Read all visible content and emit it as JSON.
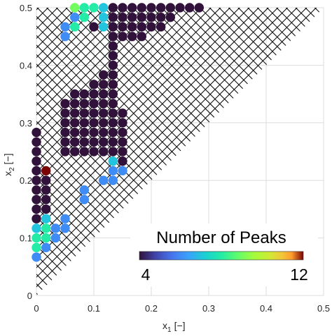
{
  "chart_data": {
    "type": "scatter",
    "xlabel": "x",
    "xlabel_sub": "1",
    "xlabel_unit": "[−]",
    "ylabel": "x",
    "ylabel_sub": "2",
    "ylabel_unit": "[−]",
    "xlim": [
      0,
      0.5
    ],
    "ylim": [
      0,
      0.5
    ],
    "x_ticks": [
      0,
      0.1,
      0.2,
      0.3,
      0.4,
      0.5
    ],
    "y_ticks": [
      0,
      0.1,
      0.2,
      0.3,
      0.4,
      0.5
    ],
    "x_tick_labels": [
      "0",
      "0.1",
      "0.2",
      "0.3",
      "0.4",
      "0.5"
    ],
    "y_tick_labels": [
      "0",
      "0.1",
      "0.2",
      "0.3",
      "0.4",
      "0.5"
    ],
    "grid": true,
    "grid_spacing": 0.01667,
    "infeasible_region": "crossed",
    "colorbar": {
      "title": "Number of Peaks",
      "min": 4,
      "max": 12,
      "min_label": "4",
      "max_label": "12",
      "colormap": "turbo",
      "placement": "bottom-right"
    },
    "points": [
      {
        "x": 0.0667,
        "y": 0.5,
        "peaks": 9
      },
      {
        "x": 0.0833,
        "y": 0.5,
        "peaks": 8
      },
      {
        "x": 0.1,
        "y": 0.5,
        "peaks": 8
      },
      {
        "x": 0.1167,
        "y": 0.5,
        "peaks": 7
      },
      {
        "x": 0.1333,
        "y": 0.5,
        "peaks": 4
      },
      {
        "x": 0.15,
        "y": 0.5,
        "peaks": 4
      },
      {
        "x": 0.1667,
        "y": 0.5,
        "peaks": 4
      },
      {
        "x": 0.1833,
        "y": 0.5,
        "peaks": 4
      },
      {
        "x": 0.2,
        "y": 0.5,
        "peaks": 4
      },
      {
        "x": 0.2167,
        "y": 0.5,
        "peaks": 4
      },
      {
        "x": 0.2333,
        "y": 0.5,
        "peaks": 4
      },
      {
        "x": 0.25,
        "y": 0.5,
        "peaks": 4
      },
      {
        "x": 0.2667,
        "y": 0.5,
        "peaks": 4
      },
      {
        "x": 0.2833,
        "y": 0.5,
        "peaks": 4
      },
      {
        "x": 0.0667,
        "y": 0.4833,
        "peaks": 6
      },
      {
        "x": 0.0833,
        "y": 0.4833,
        "peaks": 8
      },
      {
        "x": 0.1167,
        "y": 0.4833,
        "peaks": 7
      },
      {
        "x": 0.1333,
        "y": 0.4833,
        "peaks": 4
      },
      {
        "x": 0.15,
        "y": 0.4833,
        "peaks": 4
      },
      {
        "x": 0.1667,
        "y": 0.4833,
        "peaks": 4
      },
      {
        "x": 0.1833,
        "y": 0.4833,
        "peaks": 4
      },
      {
        "x": 0.2,
        "y": 0.4833,
        "peaks": 4
      },
      {
        "x": 0.2167,
        "y": 0.4833,
        "peaks": 4
      },
      {
        "x": 0.2333,
        "y": 0.4833,
        "peaks": 4
      },
      {
        "x": 0.05,
        "y": 0.4667,
        "peaks": 6
      },
      {
        "x": 0.0667,
        "y": 0.4667,
        "peaks": 8
      },
      {
        "x": 0.1,
        "y": 0.4667,
        "peaks": 4
      },
      {
        "x": 0.1167,
        "y": 0.4667,
        "peaks": 7
      },
      {
        "x": 0.1333,
        "y": 0.4667,
        "peaks": 4
      },
      {
        "x": 0.15,
        "y": 0.4667,
        "peaks": 4
      },
      {
        "x": 0.1667,
        "y": 0.4667,
        "peaks": 4
      },
      {
        "x": 0.1833,
        "y": 0.4667,
        "peaks": 4
      },
      {
        "x": 0.2,
        "y": 0.4667,
        "peaks": 4
      },
      {
        "x": 0.2167,
        "y": 0.4667,
        "peaks": 4
      },
      {
        "x": 0.05,
        "y": 0.45,
        "peaks": 6
      },
      {
        "x": 0.1333,
        "y": 0.45,
        "peaks": 4
      },
      {
        "x": 0.15,
        "y": 0.45,
        "peaks": 4
      },
      {
        "x": 0.1667,
        "y": 0.45,
        "peaks": 4
      },
      {
        "x": 0.1833,
        "y": 0.45,
        "peaks": 4
      },
      {
        "x": 0.1333,
        "y": 0.4333,
        "peaks": 4
      },
      {
        "x": 0.1333,
        "y": 0.4167,
        "peaks": 4
      },
      {
        "x": 0.1333,
        "y": 0.4,
        "peaks": 4
      },
      {
        "x": 0.1167,
        "y": 0.3833,
        "peaks": 4
      },
      {
        "x": 0.1333,
        "y": 0.3833,
        "peaks": 4
      },
      {
        "x": 0.1,
        "y": 0.3667,
        "peaks": 4
      },
      {
        "x": 0.1167,
        "y": 0.3667,
        "peaks": 4
      },
      {
        "x": 0.1333,
        "y": 0.3667,
        "peaks": 4
      },
      {
        "x": 0.0667,
        "y": 0.35,
        "peaks": 4
      },
      {
        "x": 0.0833,
        "y": 0.35,
        "peaks": 4
      },
      {
        "x": 0.1,
        "y": 0.35,
        "peaks": 4
      },
      {
        "x": 0.1167,
        "y": 0.35,
        "peaks": 4
      },
      {
        "x": 0.1333,
        "y": 0.35,
        "peaks": 4
      },
      {
        "x": 0.05,
        "y": 0.3333,
        "peaks": 4
      },
      {
        "x": 0.0667,
        "y": 0.3333,
        "peaks": 4
      },
      {
        "x": 0.0833,
        "y": 0.3333,
        "peaks": 4
      },
      {
        "x": 0.1,
        "y": 0.3333,
        "peaks": 4
      },
      {
        "x": 0.1167,
        "y": 0.3333,
        "peaks": 4
      },
      {
        "x": 0.1333,
        "y": 0.3333,
        "peaks": 4
      },
      {
        "x": 0.05,
        "y": 0.3167,
        "peaks": 4
      },
      {
        "x": 0.0667,
        "y": 0.3167,
        "peaks": 4
      },
      {
        "x": 0.0833,
        "y": 0.3167,
        "peaks": 4
      },
      {
        "x": 0.1,
        "y": 0.3167,
        "peaks": 4
      },
      {
        "x": 0.1167,
        "y": 0.3167,
        "peaks": 4
      },
      {
        "x": 0.1333,
        "y": 0.3167,
        "peaks": 4
      },
      {
        "x": 0.15,
        "y": 0.3167,
        "peaks": 4
      },
      {
        "x": 0.05,
        "y": 0.3,
        "peaks": 4
      },
      {
        "x": 0.0667,
        "y": 0.3,
        "peaks": 4
      },
      {
        "x": 0.0833,
        "y": 0.3,
        "peaks": 4
      },
      {
        "x": 0.1,
        "y": 0.3,
        "peaks": 4
      },
      {
        "x": 0.1167,
        "y": 0.3,
        "peaks": 4
      },
      {
        "x": 0.1333,
        "y": 0.3,
        "peaks": 4
      },
      {
        "x": 0.15,
        "y": 0.3,
        "peaks": 4
      },
      {
        "x": 0.05,
        "y": 0.2833,
        "peaks": 4
      },
      {
        "x": 0.0667,
        "y": 0.2833,
        "peaks": 4
      },
      {
        "x": 0.0833,
        "y": 0.2833,
        "peaks": 4
      },
      {
        "x": 0.1,
        "y": 0.2833,
        "peaks": 4
      },
      {
        "x": 0.1167,
        "y": 0.2833,
        "peaks": 4
      },
      {
        "x": 0.1333,
        "y": 0.2833,
        "peaks": 4
      },
      {
        "x": 0.15,
        "y": 0.2833,
        "peaks": 4
      },
      {
        "x": 0.05,
        "y": 0.2667,
        "peaks": 4
      },
      {
        "x": 0.0667,
        "y": 0.2667,
        "peaks": 4
      },
      {
        "x": 0.0833,
        "y": 0.2667,
        "peaks": 4
      },
      {
        "x": 0.1,
        "y": 0.2667,
        "peaks": 4
      },
      {
        "x": 0.1167,
        "y": 0.2667,
        "peaks": 4
      },
      {
        "x": 0.1333,
        "y": 0.2667,
        "peaks": 4
      },
      {
        "x": 0.15,
        "y": 0.2667,
        "peaks": 4
      },
      {
        "x": 0.05,
        "y": 0.25,
        "peaks": 4
      },
      {
        "x": 0.0667,
        "y": 0.25,
        "peaks": 4
      },
      {
        "x": 0.0833,
        "y": 0.25,
        "peaks": 4
      },
      {
        "x": 0.1,
        "y": 0.25,
        "peaks": 4
      },
      {
        "x": 0.1167,
        "y": 0.25,
        "peaks": 4
      },
      {
        "x": 0.1333,
        "y": 0.25,
        "peaks": 4
      },
      {
        "x": 0.15,
        "y": 0.25,
        "peaks": 4
      },
      {
        "x": 0.1333,
        "y": 0.2333,
        "peaks": 7
      },
      {
        "x": 0.15,
        "y": 0.2333,
        "peaks": 4
      },
      {
        "x": 0.1333,
        "y": 0.2167,
        "peaks": 6
      },
      {
        "x": 0.15,
        "y": 0.2167,
        "peaks": 6
      },
      {
        "x": 0.0833,
        "y": 0.1833,
        "peaks": 6
      },
      {
        "x": 0.0833,
        "y": 0.1667,
        "peaks": 6
      },
      {
        "x": 0.1167,
        "y": 0.2,
        "peaks": 6
      },
      {
        "x": 0.1333,
        "y": 0.2,
        "peaks": 6
      },
      {
        "x": 0,
        "y": 0.2833,
        "peaks": 4
      },
      {
        "x": 0,
        "y": 0.2667,
        "peaks": 4
      },
      {
        "x": 0,
        "y": 0.25,
        "peaks": 4
      },
      {
        "x": 0,
        "y": 0.2333,
        "peaks": 4
      },
      {
        "x": 0,
        "y": 0.2167,
        "peaks": 4
      },
      {
        "x": 0.0167,
        "y": 0.2167,
        "peaks": 12
      },
      {
        "x": 0,
        "y": 0.2,
        "peaks": 4
      },
      {
        "x": 0.0167,
        "y": 0.2,
        "peaks": 4
      },
      {
        "x": 0,
        "y": 0.1833,
        "peaks": 4
      },
      {
        "x": 0.0167,
        "y": 0.1833,
        "peaks": 4
      },
      {
        "x": 0,
        "y": 0.1667,
        "peaks": 4
      },
      {
        "x": 0.0167,
        "y": 0.1667,
        "peaks": 4
      },
      {
        "x": 0,
        "y": 0.15,
        "peaks": 4
      },
      {
        "x": 0.0167,
        "y": 0.15,
        "peaks": 4
      },
      {
        "x": 0,
        "y": 0.1333,
        "peaks": 4
      },
      {
        "x": 0.0167,
        "y": 0.1333,
        "peaks": 7
      },
      {
        "x": 0.05,
        "y": 0.1333,
        "peaks": 6
      },
      {
        "x": 0,
        "y": 0.1167,
        "peaks": 7
      },
      {
        "x": 0.0167,
        "y": 0.1167,
        "peaks": 8
      },
      {
        "x": 0.0333,
        "y": 0.1167,
        "peaks": 6
      },
      {
        "x": 0.05,
        "y": 0.1167,
        "peaks": 6
      },
      {
        "x": 0,
        "y": 0.1,
        "peaks": 8
      },
      {
        "x": 0.0167,
        "y": 0.1,
        "peaks": 8
      },
      {
        "x": 0.0333,
        "y": 0.1,
        "peaks": 6
      },
      {
        "x": 0,
        "y": 0.0833,
        "peaks": 8
      },
      {
        "x": 0.0167,
        "y": 0.0833,
        "peaks": 6
      },
      {
        "x": 0,
        "y": 0.0667,
        "peaks": 6
      }
    ]
  }
}
